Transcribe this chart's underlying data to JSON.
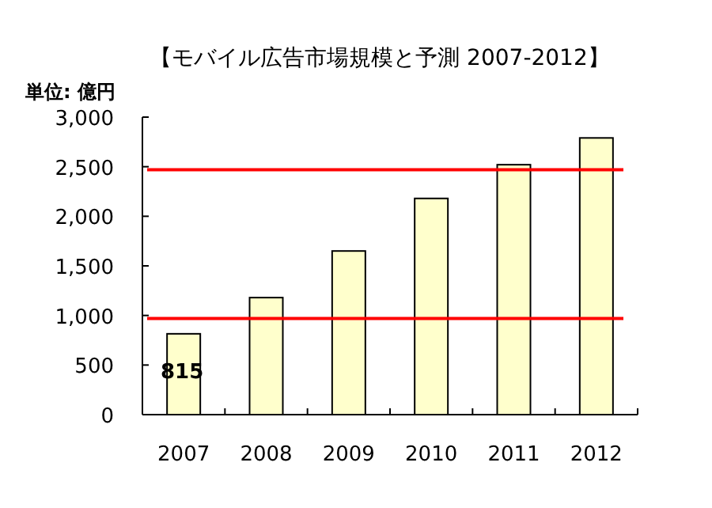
{
  "chart_data": {
    "type": "bar",
    "title": "【モバイル広告市場規模と予測 2007-2012】",
    "ylabel": "単位: 億円",
    "categories": [
      "2007",
      "2008",
      "2009",
      "2010",
      "2011",
      "2012"
    ],
    "values": [
      815,
      1180,
      1650,
      2180,
      2520,
      2790
    ],
    "value_labels": [
      "815",
      null,
      null,
      null,
      null,
      null
    ],
    "color": "#ffffcc",
    "ylim": [
      0,
      3000
    ],
    "yticks": [
      {
        "value": 0,
        "label": "0"
      },
      {
        "value": 500,
        "label": "500"
      },
      {
        "value": 1000,
        "label": "1,000"
      },
      {
        "value": 1500,
        "label": "1,500"
      },
      {
        "value": 2000,
        "label": "2,000"
      },
      {
        "value": 2500,
        "label": "2,500"
      },
      {
        "value": 3000,
        "label": "3,000"
      }
    ],
    "ref_lines": [
      {
        "axis": "y",
        "value": 2470,
        "color": "#ff0000"
      },
      {
        "axis": "y",
        "value": 970,
        "color": "#ff0000"
      }
    ]
  }
}
